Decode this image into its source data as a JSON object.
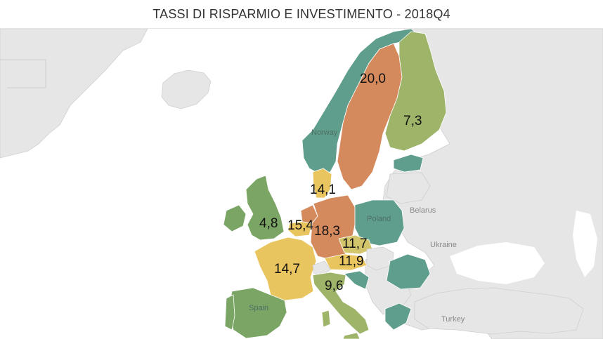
{
  "title": "TASSI DI RISPARMIO E INVESTIMENTO - 2018Q4",
  "colors": {
    "sea": "#ffffff",
    "land": "#e6e6e6",
    "greenland": "#e3e3e3",
    "border": "#cfcfcf",
    "teal": "#5f9e8c",
    "green": "#7aa565",
    "olive": "#9db469",
    "yellow": "#e9c55f",
    "lightyellow": "#d3c56c",
    "orange": "#d58a5e"
  },
  "values": {
    "sweden": "20,0",
    "finland": "7,3",
    "denmark": "14,1",
    "uk": "4,8",
    "belgium": "15,4",
    "germany": "18,3",
    "czechia": "11,7",
    "austria": "11,9",
    "france": "14,7",
    "italy": "9,6"
  },
  "place_names": {
    "norway": "Norway",
    "belarus": "Belarus",
    "poland": "Poland",
    "ukraine": "Ukraine",
    "spain": "Spain",
    "turkey": "Turkey"
  }
}
